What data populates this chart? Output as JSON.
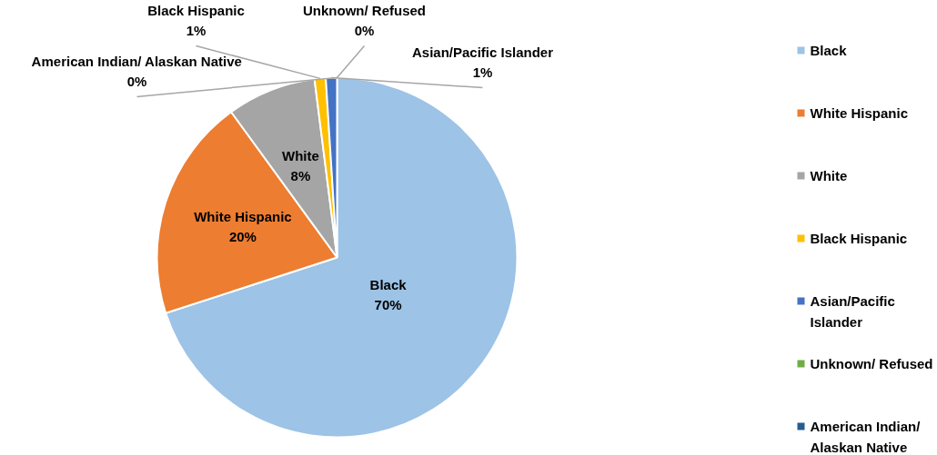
{
  "chart_data": {
    "type": "pie",
    "categories": [
      "Black",
      "White Hispanic",
      "White",
      "Black Hispanic",
      "Asian/Pacific Islander",
      "Unknown/ Refused",
      "American Indian/ Alaskan Native"
    ],
    "values": [
      70,
      20,
      8,
      1,
      1,
      0,
      0
    ],
    "value_labels": [
      "70%",
      "20%",
      "8%",
      "1%",
      "1%",
      "0%",
      "0%"
    ],
    "colors": [
      "#9dc3e6",
      "#ed7d31",
      "#a5a5a5",
      "#ffc000",
      "#4472c4",
      "#70ad47",
      "#255e91"
    ],
    "legend": "right"
  }
}
